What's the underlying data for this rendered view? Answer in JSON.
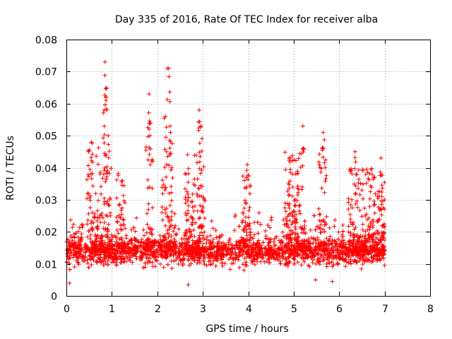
{
  "chart_data": {
    "type": "scatter",
    "title": "Day 335 of 2016, Rate Of TEC Index for receiver alba",
    "xlabel": "GPS time / hours",
    "ylabel": "ROTI / TECUs",
    "xlim": [
      0,
      8
    ],
    "ylim": [
      0,
      0.08
    ],
    "xticks": [
      "0",
      "1",
      "2",
      "3",
      "4",
      "5",
      "6",
      "7",
      "8"
    ],
    "yticks": [
      "0",
      "0.01",
      "0.02",
      "0.03",
      "0.04",
      "0.05",
      "0.06",
      "0.07",
      "0.08"
    ],
    "grid": true,
    "marker": "+",
    "color": "#ff0000",
    "x_data_range": [
      0,
      7.0
    ],
    "typical_range": [
      0.008,
      0.022
    ],
    "median": 0.014,
    "peaks": [
      {
        "x": 0.85,
        "y": 0.073
      },
      {
        "x": 0.83,
        "y": 0.058
      },
      {
        "x": 0.88,
        "y": 0.065
      },
      {
        "x": 0.92,
        "y": 0.05
      },
      {
        "x": 0.55,
        "y": 0.048
      },
      {
        "x": 1.82,
        "y": 0.063
      },
      {
        "x": 1.85,
        "y": 0.054
      },
      {
        "x": 2.25,
        "y": 0.071
      },
      {
        "x": 2.18,
        "y": 0.056
      },
      {
        "x": 2.28,
        "y": 0.053
      },
      {
        "x": 2.92,
        "y": 0.058
      },
      {
        "x": 2.96,
        "y": 0.053
      },
      {
        "x": 3.98,
        "y": 0.041
      },
      {
        "x": 4.9,
        "y": 0.043
      },
      {
        "x": 5.2,
        "y": 0.053
      },
      {
        "x": 5.65,
        "y": 0.051
      },
      {
        "x": 6.35,
        "y": 0.045
      },
      {
        "x": 6.92,
        "y": 0.043
      }
    ],
    "bursts": [
      {
        "x_from": 0.45,
        "x_to": 1.0,
        "y_max": 0.047
      },
      {
        "x_from": 1.1,
        "x_to": 1.3,
        "y_max": 0.04
      },
      {
        "x_from": 1.75,
        "x_to": 1.9,
        "y_max": 0.05
      },
      {
        "x_from": 2.1,
        "x_to": 2.35,
        "y_max": 0.05
      },
      {
        "x_from": 2.6,
        "x_to": 3.05,
        "y_max": 0.045
      },
      {
        "x_from": 3.85,
        "x_to": 4.05,
        "y_max": 0.038
      },
      {
        "x_from": 4.8,
        "x_to": 5.25,
        "y_max": 0.045
      },
      {
        "x_from": 5.55,
        "x_to": 5.72,
        "y_max": 0.047
      },
      {
        "x_from": 6.2,
        "x_to": 7.0,
        "y_max": 0.04
      }
    ],
    "lows": [
      {
        "x": 0.07,
        "y": 0.004
      },
      {
        "x": 2.68,
        "y": 0.0035
      },
      {
        "x": 5.48,
        "y": 0.005
      },
      {
        "x": 5.85,
        "y": 0.0045
      }
    ]
  }
}
